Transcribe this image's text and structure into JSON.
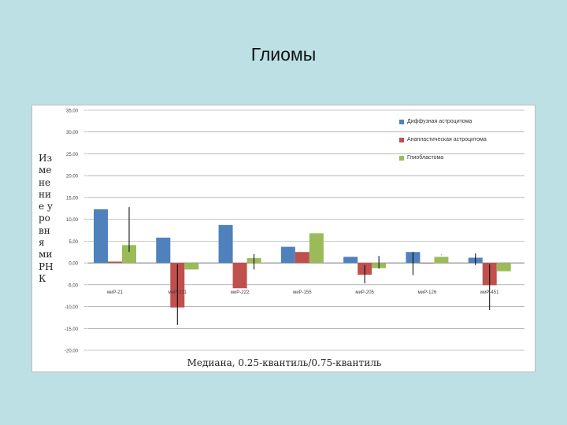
{
  "slide": {
    "title": "Глиомы"
  },
  "chart_data": {
    "type": "bar",
    "title": "",
    "xlabel": "Медиана, 0.25-квантиль/0.75-квантиль",
    "ylabel": "Изменение уровня миРНК",
    "ylim": [
      -20,
      35
    ],
    "y_tick_labels": [
      "35,00",
      "30,00",
      "25,00",
      "20,00",
      "15,00",
      "10,00",
      "5,00",
      "0,00",
      "-5,00",
      "-10,00",
      "-15,00",
      "-20,00"
    ],
    "categories": [
      "миР-21",
      "миР-221",
      "миР-222",
      "миР-155",
      "миР-205",
      "миР-126",
      "миР-451"
    ],
    "series": [
      {
        "name": "Диффузная астроцитома",
        "color": "#4f81bd",
        "values": [
          12.3,
          5.8,
          8.7,
          3.7,
          1.4,
          2.5,
          1.2
        ],
        "err_low": [
          null,
          null,
          null,
          null,
          null,
          -2.8,
          -0.5
        ],
        "err_high": [
          null,
          null,
          null,
          null,
          null,
          2.5,
          2.2
        ]
      },
      {
        "name": "Анапластическая астроцитома",
        "color": "#c0504d",
        "values": [
          0.3,
          -10.2,
          -5.8,
          2.5,
          -2.7,
          0,
          -5.1
        ],
        "err_low": [
          null,
          -14.2,
          null,
          null,
          -4.7,
          null,
          -10.8
        ],
        "err_high": [
          null,
          -0.3,
          null,
          null,
          -0.5,
          null,
          -0.3
        ]
      },
      {
        "name": "Глиобластома",
        "color": "#9bbb59",
        "values": [
          4.1,
          -1.5,
          1.1,
          6.8,
          -1.2,
          1.4,
          -1.9
        ],
        "err_low": [
          2.5,
          null,
          -1.5,
          null,
          -1.3,
          1.8,
          null
        ],
        "err_high": [
          12.8,
          null,
          2.0,
          null,
          1.6,
          1.9,
          null
        ]
      }
    ],
    "legend_position": "top-right",
    "grid": true
  }
}
